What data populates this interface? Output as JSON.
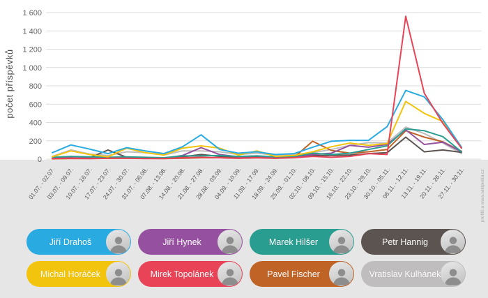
{
  "chart": {
    "ylabel": "počet příspěvků",
    "credit": "profilů a www.wikipedia.cz",
    "yticks": [
      "0",
      "200",
      "400",
      "600",
      "800",
      "1 000",
      "1 200",
      "1 400",
      "1 600"
    ],
    "grid": true,
    "colors": {
      "background": "#ffffff",
      "panel": "#E7E6E6",
      "gridline": "#dcdcdc"
    }
  },
  "chart_data": {
    "type": "line",
    "title": "",
    "xlabel": "",
    "ylabel": "počet příspěvků",
    "ylim": [
      0,
      1600
    ],
    "legend_position": "bottom",
    "categories": [
      "01.07. - 02.07.",
      "03.07. - 09.07.",
      "10.07. - 16.07.",
      "17.07. - 23.07.",
      "24.07. - 30.07.",
      "31.07. - 06.08.",
      "07.08. - 13.08.",
      "14.08. - 20.08.",
      "21.08. - 27.08.",
      "28.08. - 03.09.",
      "04.09. - 10.09.",
      "11.09. - 17.09.",
      "18.09. - 24.09.",
      "25.09. - 01.10.",
      "02.10. - 08.10.",
      "09.10. - 15.10.",
      "16.10. - 22.10.",
      "23.10. - 29.10.",
      "30.10. - 05.11.",
      "06.11. - 12.11.",
      "13.11. - 19.11.",
      "20.11. - 26.11.",
      "27.11. - 30.11."
    ],
    "series": [
      {
        "id": "kulhanek",
        "name": "Vratislav Kulhánek",
        "color": "#BFBDBE",
        "values": [
          30,
          100,
          55,
          40,
          80,
          70,
          45,
          90,
          90,
          80,
          50,
          65,
          45,
          50,
          70,
          105,
          150,
          180,
          175,
          350,
          280,
          175,
          60
        ]
      },
      {
        "id": "hannig",
        "name": "Petr Hannig",
        "color": "#5C5450",
        "values": [
          5,
          10,
          15,
          100,
          20,
          15,
          10,
          25,
          50,
          30,
          15,
          25,
          15,
          25,
          40,
          40,
          45,
          60,
          70,
          240,
          80,
          100,
          75
        ]
      },
      {
        "id": "fischer",
        "name": "Pavel Fischer",
        "color": "#C06327",
        "values": [
          3,
          5,
          5,
          8,
          10,
          8,
          5,
          10,
          15,
          15,
          10,
          15,
          10,
          20,
          195,
          95,
          65,
          80,
          105,
          310,
          240,
          190,
          85
        ]
      },
      {
        "id": "hynek",
        "name": "Jiří Hynek",
        "color": "#95519F",
        "values": [
          10,
          15,
          10,
          15,
          20,
          15,
          10,
          40,
          125,
          50,
          25,
          35,
          15,
          25,
          50,
          65,
          150,
          130,
          160,
          320,
          160,
          185,
          80
        ]
      },
      {
        "id": "hilser",
        "name": "Marek Hilšer",
        "color": "#299D90",
        "values": [
          20,
          30,
          25,
          20,
          25,
          20,
          15,
          35,
          35,
          40,
          30,
          35,
          25,
          30,
          65,
          50,
          65,
          105,
          145,
          330,
          310,
          245,
          80
        ]
      },
      {
        "id": "horacek",
        "name": "Michal Horáček",
        "color": "#F2C40D",
        "values": [
          25,
          90,
          50,
          25,
          120,
          70,
          45,
          120,
          145,
          120,
          45,
          90,
          30,
          40,
          80,
          135,
          175,
          150,
          170,
          630,
          500,
          410,
          120
        ]
      },
      {
        "id": "drahos",
        "name": "Jiří Drahoš",
        "color": "#29ABE2",
        "values": [
          70,
          155,
          110,
          60,
          125,
          90,
          60,
          135,
          265,
          105,
          65,
          80,
          50,
          60,
          130,
          195,
          205,
          205,
          355,
          750,
          680,
          430,
          130
        ]
      },
      {
        "id": "topolanek",
        "name": "Mirek Topolánek",
        "color": "#E84357",
        "values": [
          5,
          10,
          5,
          10,
          10,
          5,
          5,
          15,
          20,
          15,
          10,
          15,
          10,
          15,
          30,
          20,
          30,
          60,
          50,
          1560,
          720,
          390,
          120
        ]
      }
    ]
  },
  "legend": {
    "items": [
      {
        "id": "drahos",
        "label": "Jiří Drahoš",
        "color": "#29ABE2"
      },
      {
        "id": "hynek",
        "label": "Jiří Hynek",
        "color": "#95519F"
      },
      {
        "id": "hilser",
        "label": "Marek Hilšer",
        "color": "#299D90"
      },
      {
        "id": "hannig",
        "label": "Petr Hannig",
        "color": "#5C5450"
      },
      {
        "id": "horacek",
        "label": "Michal Horáček",
        "color": "#F2C40D"
      },
      {
        "id": "topolanek",
        "label": "Mirek Topolánek",
        "color": "#E84357"
      },
      {
        "id": "fischer",
        "label": "Pavel Fischer",
        "color": "#C06327"
      },
      {
        "id": "kulhanek",
        "label": "Vratislav Kulhánek",
        "color": "#BFBDBE"
      }
    ]
  }
}
